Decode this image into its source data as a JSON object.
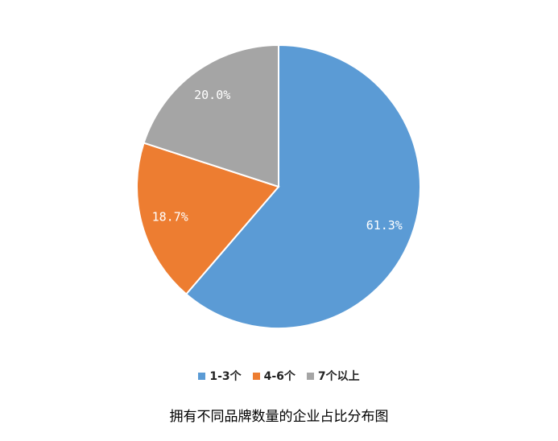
{
  "chart_data": {
    "type": "pie",
    "categories": [
      "1-3个",
      "4-6个",
      "7个以上"
    ],
    "values": [
      61.3,
      18.7,
      20.0
    ],
    "value_labels": [
      "61.3%",
      "18.7%",
      "20.0%"
    ],
    "colors": [
      "#5b9bd5",
      "#ed7d31",
      "#a5a5a5"
    ],
    "start_angle_deg": 0,
    "direction": "clockwise",
    "legend_position": "bottom",
    "caption": "拥有不同品牌数量的企业占比分布图"
  }
}
